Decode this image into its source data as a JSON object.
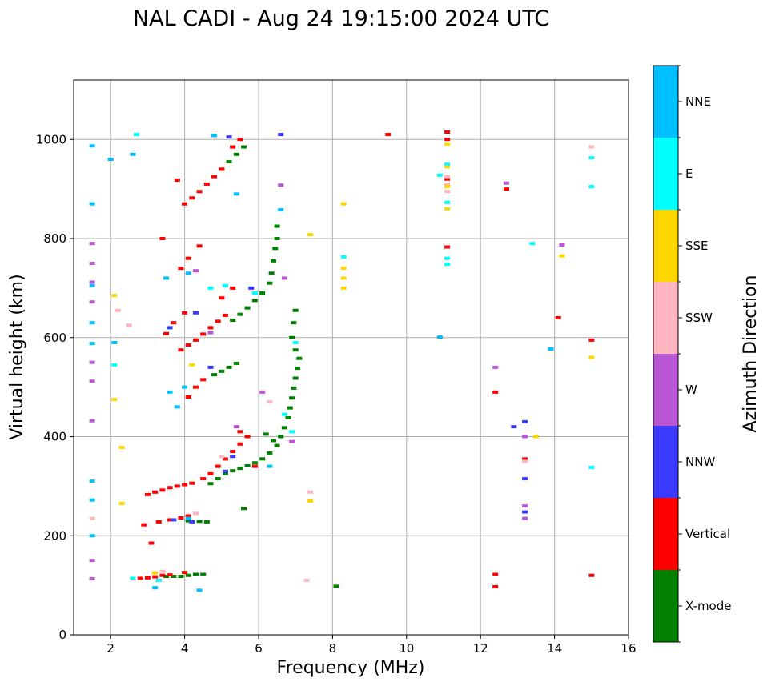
{
  "chart_data": {
    "type": "scatter",
    "title": "NAL CADI - Aug 24 19:15:00 2024 UTC",
    "xlabel": "Frequency (MHz)",
    "ylabel": "Virtual height (km)",
    "xlim": [
      1,
      16
    ],
    "ylim": [
      0,
      1120
    ],
    "xticks": [
      2,
      4,
      6,
      8,
      10,
      12,
      14,
      16
    ],
    "yticks": [
      0,
      200,
      400,
      600,
      800,
      1000
    ],
    "grid": true,
    "colorbar": {
      "label": "Azimuth Direction",
      "categories": [
        {
          "name": "X-mode",
          "color": "#008000"
        },
        {
          "name": "Vertical",
          "color": "#ff0000"
        },
        {
          "name": "NNW",
          "color": "#3a3aff"
        },
        {
          "name": "W",
          "color": "#ba55d3"
        },
        {
          "name": "SSW",
          "color": "#ffb6c1"
        },
        {
          "name": "SSE",
          "color": "#ffd700"
        },
        {
          "name": "E",
          "color": "#00ffff"
        },
        {
          "name": "NNE",
          "color": "#00bfff"
        }
      ]
    },
    "series": [
      {
        "name": "X-mode",
        "points": [
          [
            3.5,
            118
          ],
          [
            3.7,
            118
          ],
          [
            3.9,
            118
          ],
          [
            4.1,
            120
          ],
          [
            4.3,
            122
          ],
          [
            4.5,
            122
          ],
          [
            4.6,
            228
          ],
          [
            4.4,
            229
          ],
          [
            4.1,
            230
          ],
          [
            4.7,
            305
          ],
          [
            4.9,
            315
          ],
          [
            5.1,
            325
          ],
          [
            5.3,
            331
          ],
          [
            5.5,
            336
          ],
          [
            5.7,
            341
          ],
          [
            5.9,
            347
          ],
          [
            6.1,
            355
          ],
          [
            6.3,
            367
          ],
          [
            6.5,
            382
          ],
          [
            6.6,
            400
          ],
          [
            6.7,
            418
          ],
          [
            6.8,
            438
          ],
          [
            6.85,
            458
          ],
          [
            6.9,
            478
          ],
          [
            6.95,
            498
          ],
          [
            7.0,
            518
          ],
          [
            7.05,
            538
          ],
          [
            7.1,
            558
          ],
          [
            7.0,
            575
          ],
          [
            6.9,
            600
          ],
          [
            6.95,
            630
          ],
          [
            7.0,
            655
          ],
          [
            4.8,
            525
          ],
          [
            5.0,
            532
          ],
          [
            5.2,
            540
          ],
          [
            5.4,
            548
          ],
          [
            5.3,
            635
          ],
          [
            5.5,
            647
          ],
          [
            5.7,
            660
          ],
          [
            5.9,
            675
          ],
          [
            6.1,
            690
          ],
          [
            6.3,
            710
          ],
          [
            6.35,
            730
          ],
          [
            6.4,
            755
          ],
          [
            6.45,
            780
          ],
          [
            6.5,
            800
          ],
          [
            6.5,
            825
          ],
          [
            5.0,
            940
          ],
          [
            5.2,
            955
          ],
          [
            5.4,
            970
          ],
          [
            5.6,
            985
          ],
          [
            6.2,
            405
          ],
          [
            6.4,
            392
          ],
          [
            5.6,
            255
          ],
          [
            8.1,
            98
          ]
        ]
      },
      {
        "name": "Vertical",
        "points": [
          [
            2.6,
            113
          ],
          [
            2.8,
            114
          ],
          [
            3.0,
            115
          ],
          [
            3.2,
            117
          ],
          [
            3.4,
            120
          ],
          [
            3.6,
            121
          ],
          [
            4.0,
            126
          ],
          [
            12.4,
            122
          ],
          [
            12.4,
            97
          ],
          [
            15.0,
            120
          ],
          [
            2.9,
            222
          ],
          [
            3.3,
            228
          ],
          [
            3.6,
            232
          ],
          [
            3.9,
            236
          ],
          [
            4.1,
            240
          ],
          [
            3.1,
            185
          ],
          [
            3.0,
            283
          ],
          [
            3.2,
            288
          ],
          [
            3.4,
            292
          ],
          [
            3.6,
            297
          ],
          [
            3.8,
            300
          ],
          [
            4.0,
            303
          ],
          [
            4.2,
            306
          ],
          [
            4.5,
            315
          ],
          [
            4.7,
            325
          ],
          [
            4.9,
            340
          ],
          [
            5.1,
            355
          ],
          [
            5.3,
            370
          ],
          [
            5.5,
            385
          ],
          [
            5.7,
            400
          ],
          [
            4.1,
            480
          ],
          [
            4.3,
            500
          ],
          [
            4.5,
            515
          ],
          [
            3.9,
            575
          ],
          [
            4.1,
            585
          ],
          [
            4.3,
            595
          ],
          [
            4.5,
            607
          ],
          [
            4.7,
            620
          ],
          [
            4.9,
            633
          ],
          [
            5.1,
            645
          ],
          [
            3.5,
            608
          ],
          [
            3.7,
            630
          ],
          [
            4.0,
            650
          ],
          [
            5.0,
            680
          ],
          [
            5.3,
            700
          ],
          [
            3.9,
            740
          ],
          [
            4.1,
            760
          ],
          [
            4.0,
            870
          ],
          [
            4.2,
            882
          ],
          [
            4.4,
            895
          ],
          [
            4.6,
            910
          ],
          [
            4.8,
            925
          ],
          [
            5.0,
            940
          ],
          [
            5.3,
            985
          ],
          [
            5.5,
            1000
          ],
          [
            9.5,
            1010
          ],
          [
            11.1,
            1015
          ],
          [
            11.1,
            1000
          ],
          [
            11.1,
            920
          ],
          [
            11.1,
            783
          ],
          [
            12.7,
            900
          ],
          [
            12.4,
            490
          ],
          [
            13.2,
            355
          ],
          [
            14.1,
            640
          ],
          [
            15.0,
            595
          ],
          [
            3.4,
            800
          ],
          [
            3.8,
            918
          ],
          [
            4.4,
            785
          ],
          [
            5.5,
            410
          ],
          [
            5.9,
            340
          ]
        ]
      },
      {
        "name": "NNW",
        "points": [
          [
            3.7,
            232
          ],
          [
            4.2,
            228
          ],
          [
            5.1,
            330
          ],
          [
            5.3,
            360
          ],
          [
            6.6,
            1010
          ],
          [
            12.9,
            420
          ],
          [
            13.2,
            430
          ],
          [
            13.2,
            315
          ],
          [
            13.2,
            248
          ],
          [
            4.7,
            540
          ],
          [
            4.3,
            650
          ],
          [
            5.8,
            700
          ],
          [
            5.2,
            1005
          ],
          [
            3.6,
            620
          ]
        ]
      },
      {
        "name": "W",
        "points": [
          [
            1.5,
            790
          ],
          [
            1.5,
            750
          ],
          [
            1.5,
            712
          ],
          [
            1.5,
            672
          ],
          [
            1.5,
            550
          ],
          [
            1.5,
            512
          ],
          [
            1.5,
            432
          ],
          [
            1.5,
            150
          ],
          [
            1.5,
            113
          ],
          [
            6.6,
            908
          ],
          [
            6.7,
            720
          ],
          [
            6.1,
            490
          ],
          [
            6.9,
            390
          ],
          [
            13.2,
            260
          ],
          [
            13.2,
            400
          ],
          [
            13.2,
            235
          ],
          [
            12.4,
            540
          ],
          [
            12.7,
            912
          ],
          [
            14.2,
            787
          ],
          [
            4.3,
            735
          ],
          [
            4.7,
            610
          ],
          [
            5.4,
            420
          ]
        ]
      },
      {
        "name": "SSW",
        "points": [
          [
            1.5,
            235
          ],
          [
            2.2,
            655
          ],
          [
            2.5,
            625
          ],
          [
            7.3,
            110
          ],
          [
            7.4,
            288
          ],
          [
            11.1,
            925
          ],
          [
            11.1,
            910
          ],
          [
            11.1,
            895
          ],
          [
            13.2,
            350
          ],
          [
            15.0,
            985
          ],
          [
            4.3,
            245
          ],
          [
            3.4,
            128
          ],
          [
            5.0,
            360
          ],
          [
            6.3,
            470
          ]
        ]
      },
      {
        "name": "SSE",
        "points": [
          [
            2.1,
            685
          ],
          [
            2.1,
            475
          ],
          [
            2.3,
            378
          ],
          [
            2.3,
            265
          ],
          [
            8.3,
            870
          ],
          [
            8.3,
            740
          ],
          [
            8.3,
            720
          ],
          [
            8.3,
            700
          ],
          [
            11.1,
            990
          ],
          [
            11.1,
            945
          ],
          [
            11.1,
            905
          ],
          [
            11.1,
            860
          ],
          [
            13.5,
            400
          ],
          [
            14.2,
            765
          ],
          [
            15.0,
            560
          ],
          [
            7.4,
            808
          ],
          [
            7.4,
            270
          ],
          [
            3.2,
            125
          ],
          [
            4.2,
            545
          ]
        ]
      },
      {
        "name": "E",
        "points": [
          [
            2.1,
            545
          ],
          [
            2.7,
            1010
          ],
          [
            8.3,
            763
          ],
          [
            10.9,
            928
          ],
          [
            11.1,
            950
          ],
          [
            11.1,
            873
          ],
          [
            11.1,
            760
          ],
          [
            11.1,
            748
          ],
          [
            13.4,
            790
          ],
          [
            15.0,
            963
          ],
          [
            15.0,
            905
          ],
          [
            15.0,
            338
          ],
          [
            4.7,
            700
          ],
          [
            5.1,
            705
          ],
          [
            6.9,
            410
          ],
          [
            7.0,
            590
          ],
          [
            6.7,
            445
          ],
          [
            5.9,
            690
          ],
          [
            3.3,
            110
          ],
          [
            2.6,
            114
          ]
        ]
      },
      {
        "name": "NNE",
        "points": [
          [
            1.5,
            987
          ],
          [
            1.5,
            870
          ],
          [
            1.5,
            705
          ],
          [
            1.5,
            630
          ],
          [
            1.5,
            588
          ],
          [
            1.5,
            310
          ],
          [
            1.5,
            272
          ],
          [
            1.5,
            200
          ],
          [
            2.0,
            960
          ],
          [
            2.1,
            590
          ],
          [
            2.6,
            970
          ],
          [
            3.6,
            490
          ],
          [
            3.8,
            460
          ],
          [
            4.0,
            500
          ],
          [
            4.4,
            90
          ],
          [
            5.4,
            890
          ],
          [
            6.6,
            858
          ],
          [
            10.9,
            601
          ],
          [
            13.9,
            577
          ],
          [
            4.8,
            1008
          ],
          [
            3.5,
            720
          ],
          [
            4.1,
            730
          ],
          [
            3.2,
            95
          ],
          [
            4.1,
            235
          ],
          [
            6.3,
            340
          ]
        ]
      }
    ]
  }
}
